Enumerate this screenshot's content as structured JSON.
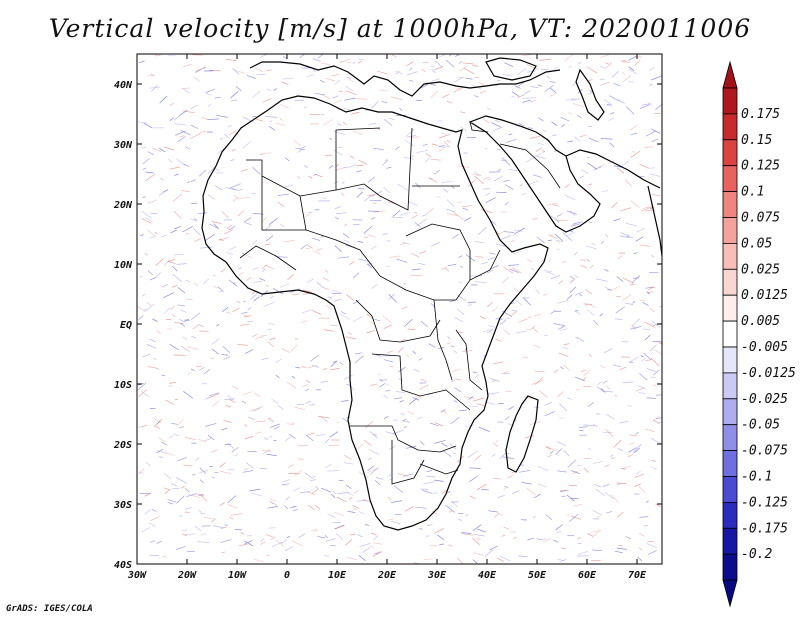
{
  "title": "Vertical velocity [m/s] at 1000hPa, VT: 2020011006",
  "credit": "GrADS: IGES/COLA",
  "map": {
    "lon_range": [
      -30,
      75
    ],
    "lat_range": [
      -40,
      45
    ],
    "lat_ticks": [
      "40N",
      "30N",
      "20N",
      "10N",
      "EQ",
      "10S",
      "20S",
      "30S",
      "40S"
    ],
    "lat_values": [
      40,
      30,
      20,
      10,
      0,
      -10,
      -20,
      -30,
      -40
    ],
    "lon_ticks": [
      "30W",
      "20W",
      "10W",
      "0",
      "10E",
      "20E",
      "30E",
      "40E",
      "50E",
      "60E",
      "70E"
    ],
    "lon_values": [
      -30,
      -20,
      -10,
      0,
      10,
      20,
      30,
      40,
      50,
      60,
      70
    ]
  },
  "colorbar": {
    "labels": [
      "0.175",
      "0.15",
      "0.125",
      "0.1",
      "0.075",
      "0.05",
      "0.025",
      "0.0125",
      "0.005",
      "-0.005",
      "-0.0125",
      "-0.025",
      "-0.05",
      "-0.075",
      "-0.1",
      "-0.125",
      "-0.175",
      "-0.2"
    ],
    "colors": [
      "#b0171c",
      "#c92a2b",
      "#dc4340",
      "#e8625e",
      "#f0847e",
      "#f5a29d",
      "#f8bdb9",
      "#fad6d3",
      "#fdeeec",
      "#ffffff",
      "#e6e6fb",
      "#cacaf5",
      "#adadef",
      "#8f8fe8",
      "#6f6fe0",
      "#4a4ad4",
      "#2b2bbf",
      "#1717a6",
      "#0c0c8c"
    ],
    "top_arrow_color": "#a01318",
    "bottom_arrow_color": "#0a0a80"
  }
}
